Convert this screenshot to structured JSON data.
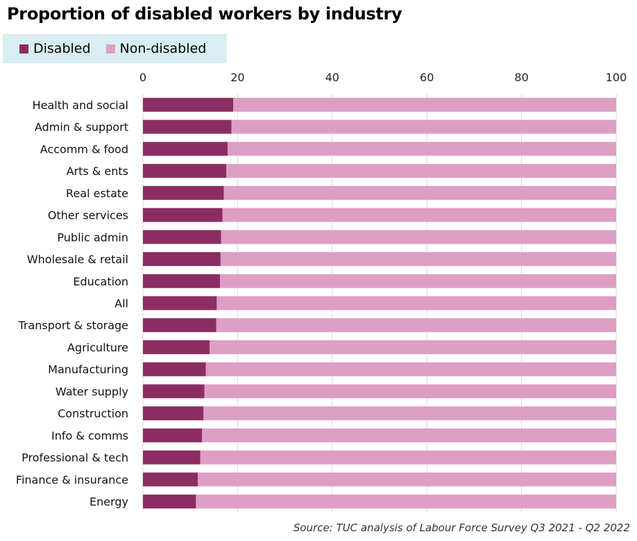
{
  "colors": {
    "disabled": "#8b2d62",
    "non_disabled": "#de9ec4",
    "grid": "#d9d9d9",
    "legend_bg": "#d9eef2"
  },
  "chart_data": {
    "type": "bar",
    "orientation": "horizontal",
    "stacked": true,
    "title": "Proportion of disabled workers by industry",
    "source": "Source: TUC analysis of Labour Force Survey Q3 2021 - Q2 2022",
    "xlim": [
      0,
      100
    ],
    "x_ticks": [
      0,
      20,
      40,
      60,
      80,
      100
    ],
    "x_axis_position": "top",
    "grid": true,
    "legend_position": "top-left",
    "categories": [
      "Health and social",
      "Admin & support",
      "Accomm & food",
      "Arts & ents",
      "Real estate",
      "Other services",
      "Public admin",
      "Wholesale & retail",
      "Education",
      "All",
      "Transport & storage",
      "Agriculture",
      "Manufacturing",
      "Water supply",
      "Construction",
      "Info & comms",
      "Professional & tech",
      "Finance & insurance",
      "Energy"
    ],
    "series": [
      {
        "name": "Disabled",
        "values": [
          19.1,
          18.7,
          17.9,
          17.6,
          17.1,
          16.8,
          16.5,
          16.4,
          16.3,
          15.6,
          15.5,
          14.1,
          13.3,
          13.0,
          12.8,
          12.5,
          12.1,
          11.6,
          11.2
        ]
      },
      {
        "name": "Non-disabled",
        "values": [
          80.9,
          81.3,
          82.1,
          82.4,
          82.9,
          83.2,
          83.5,
          83.6,
          83.7,
          84.4,
          84.5,
          85.9,
          86.7,
          87.0,
          87.2,
          87.5,
          87.9,
          88.4,
          88.8
        ]
      }
    ]
  }
}
